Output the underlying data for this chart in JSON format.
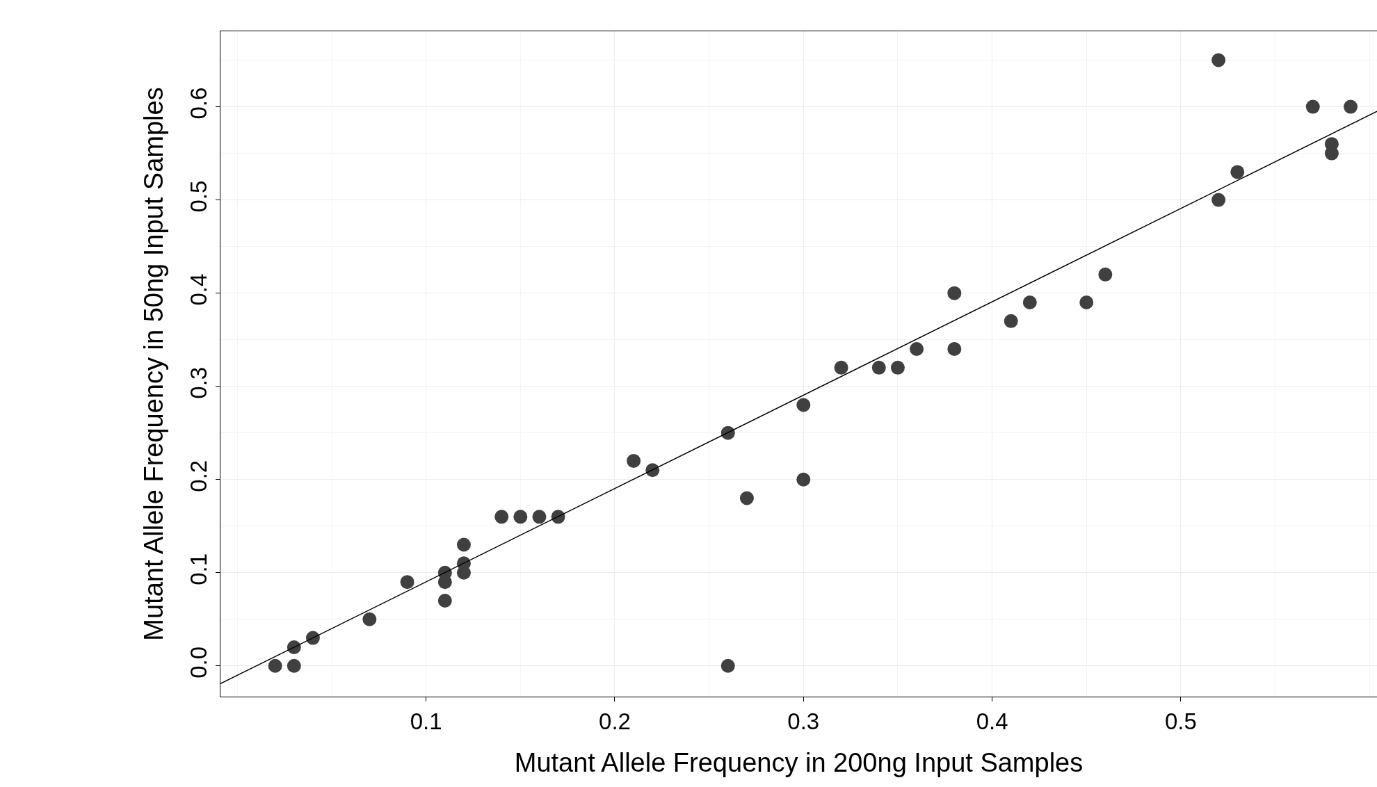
{
  "chart_data": {
    "type": "scatter",
    "xlabel": "Mutant Allele Frequency in 200ng Input Samples",
    "ylabel": "Mutant Allele Frequency in 50ng Input Samples",
    "x": [
      0.02,
      0.03,
      0.03,
      0.04,
      0.07,
      0.09,
      0.11,
      0.11,
      0.11,
      0.12,
      0.12,
      0.12,
      0.14,
      0.15,
      0.16,
      0.17,
      0.21,
      0.22,
      0.26,
      0.27,
      0.26,
      0.3,
      0.3,
      0.32,
      0.34,
      0.35,
      0.36,
      0.38,
      0.38,
      0.41,
      0.42,
      0.45,
      0.46,
      0.52,
      0.52,
      0.53,
      0.57,
      0.58,
      0.58,
      0.59
    ],
    "series": [
      {
        "color": "#404040",
        "marker": "circle",
        "values": [
          0.0,
          0.0,
          0.02,
          0.03,
          0.05,
          0.09,
          0.1,
          0.09,
          0.07,
          0.13,
          0.11,
          0.1,
          0.16,
          0.16,
          0.16,
          0.16,
          0.22,
          0.21,
          0.25,
          0.18,
          0.0,
          0.28,
          0.2,
          0.32,
          0.32,
          0.32,
          0.34,
          0.4,
          0.34,
          0.37,
          0.39,
          0.39,
          0.42,
          0.65,
          0.5,
          0.53,
          0.6,
          0.56,
          0.55,
          0.6
        ]
      },
      {
        "type": "line",
        "color": "#000000",
        "marker": "none",
        "x": [
          -0.009,
          0.604
        ],
        "values": [
          -0.019,
          0.595
        ]
      }
    ],
    "xlim": [
      -0.009,
      0.604
    ],
    "ylim": [
      -0.033,
      0.681
    ],
    "xticks": [
      0.1,
      0.2,
      0.3,
      0.4,
      0.5
    ],
    "yticks": [
      {
        "value": 0,
        "label": "0.0"
      },
      0.1,
      0.2,
      0.3,
      0.4,
      0.5,
      0.6
    ],
    "grid": true
  }
}
